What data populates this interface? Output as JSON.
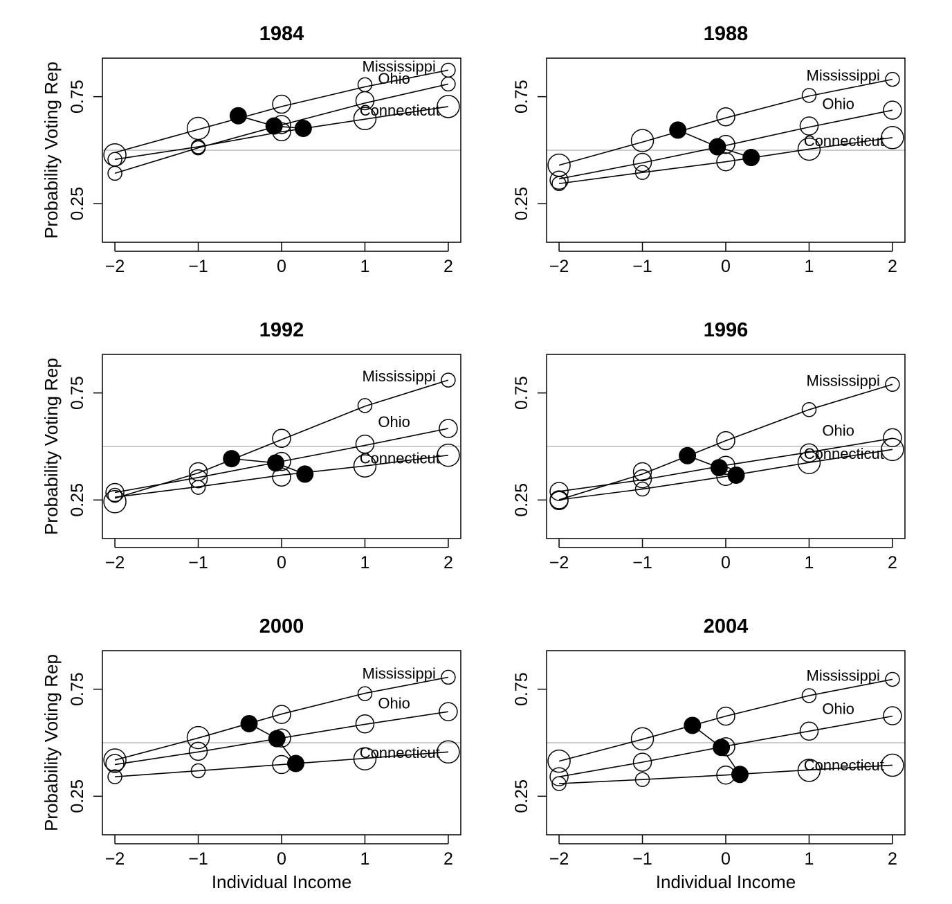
{
  "chart_data": {
    "type": "line",
    "layout": "3x2 small multiples",
    "xlabel": "Individual Income",
    "ylabel": "Probability Voting Rep",
    "xlim": [
      -2.15,
      2.15
    ],
    "ylim": [
      0.07,
      0.93
    ],
    "xticks": [
      -2,
      -1,
      0,
      1,
      2
    ],
    "xtick_labels": [
      "−2",
      "−1",
      "0",
      "1",
      "2"
    ],
    "yticks": [
      0.25,
      0.75
    ],
    "ytick_labels": [
      "0.25",
      "0.75"
    ],
    "reference_line": {
      "y": 0.5,
      "color": "#bbbbbb"
    },
    "x": [
      -2,
      -1,
      0,
      1,
      2
    ],
    "point_style": "open circles sized by relative sample size (1 small - 3 large); filled circles = state averages connected by a line",
    "panels": [
      {
        "title": "1984",
        "series": [
          {
            "name": "Mississippi",
            "fit": [
              0.489,
              0.597,
              0.704,
              0.796,
              0.874
            ],
            "points": [
              0.478,
              0.602,
              0.715,
              0.806,
              0.874
            ],
            "sizes": [
              3,
              3,
              2,
              1,
              1
            ],
            "average": {
              "x": -0.52,
              "y": 0.661
            }
          },
          {
            "name": "Ohio",
            "fit": [
              0.392,
              0.511,
              0.618,
              0.72,
              0.809
            ],
            "points": [
              0.392,
              0.511,
              0.586,
              0.731,
              0.809
            ],
            "sizes": [
              1,
              1,
              2,
              2,
              1
            ],
            "average": {
              "x": -0.09,
              "y": 0.613
            }
          },
          {
            "name": "Connecticut",
            "fit": [
              0.457,
              0.516,
              0.586,
              0.645,
              0.704
            ],
            "points": [
              0.457,
              0.516,
              0.62,
              0.648,
              0.704
            ],
            "sizes": [
              1,
              1,
              2,
              3,
              3
            ],
            "average": {
              "x": 0.26,
              "y": 0.602
            }
          }
        ]
      },
      {
        "title": "1988",
        "series": [
          {
            "name": "Mississippi",
            "fit": [
              0.43,
              0.538,
              0.651,
              0.753,
              0.831
            ],
            "points": [
              0.43,
              0.545,
              0.656,
              0.756,
              0.831
            ],
            "sizes": [
              3,
              3,
              2,
              1,
              1
            ],
            "average": {
              "x": -0.575,
              "y": 0.594
            }
          },
          {
            "name": "Ohio",
            "fit": [
              0.366,
              0.441,
              0.522,
              0.608,
              0.687
            ],
            "points": [
              0.36,
              0.443,
              0.527,
              0.613,
              0.687
            ],
            "sizes": [
              2,
              2,
              2,
              2,
              2
            ],
            "average": {
              "x": -0.1,
              "y": 0.516
            }
          },
          {
            "name": "Connecticut",
            "fit": [
              0.344,
              0.396,
              0.446,
              0.505,
              0.559
            ],
            "points": [
              0.344,
              0.396,
              0.446,
              0.505,
              0.559
            ],
            "sizes": [
              1,
              1,
              2,
              3,
              3
            ],
            "average": {
              "x": 0.305,
              "y": 0.466
            }
          }
        ]
      },
      {
        "title": "1992",
        "series": [
          {
            "name": "Mississippi",
            "fit": [
              0.258,
              0.376,
              0.532,
              0.688,
              0.81
            ],
            "points": [
              0.242,
              0.382,
              0.538,
              0.691,
              0.81
            ],
            "sizes": [
              3,
              2,
              2,
              1,
              1
            ],
            "average": {
              "x": -0.6,
              "y": 0.443
            }
          },
          {
            "name": "Ohio",
            "fit": [
              0.285,
              0.355,
              0.43,
              0.505,
              0.584
            ],
            "points": [
              0.285,
              0.349,
              0.43,
              0.511,
              0.584
            ],
            "sizes": [
              2,
              2,
              2,
              2,
              2
            ],
            "average": {
              "x": -0.07,
              "y": 0.423
            }
          },
          {
            "name": "Connecticut",
            "fit": [
              0.263,
              0.312,
              0.366,
              0.409,
              0.459
            ],
            "points": [
              0.272,
              0.309,
              0.357,
              0.409,
              0.459
            ],
            "sizes": [
              1,
              1,
              2,
              3,
              3
            ],
            "average": {
              "x": 0.28,
              "y": 0.371
            }
          }
        ]
      },
      {
        "title": "1996",
        "series": [
          {
            "name": "Mississippi",
            "fit": [
              0.251,
              0.371,
              0.527,
              0.672,
              0.79
            ],
            "points": [
              0.251,
              0.382,
              0.527,
              0.672,
              0.79
            ],
            "sizes": [
              2,
              2,
              2,
              1,
              1
            ],
            "average": {
              "x": -0.46,
              "y": 0.457
            }
          },
          {
            "name": "Ohio",
            "fit": [
              0.29,
              0.344,
              0.412,
              0.473,
              0.538
            ],
            "points": [
              0.29,
              0.349,
              0.412,
              0.47,
              0.541
            ],
            "sizes": [
              2,
              2,
              2,
              2,
              2
            ],
            "average": {
              "x": -0.08,
              "y": 0.401
            }
          },
          {
            "name": "Connecticut",
            "fit": [
              0.251,
              0.301,
              0.36,
              0.425,
              0.486
            ],
            "points": [
              0.247,
              0.301,
              0.36,
              0.425,
              0.486
            ],
            "sizes": [
              2,
              1,
              2,
              3,
              3
            ],
            "average": {
              "x": 0.125,
              "y": 0.366
            }
          }
        ]
      },
      {
        "title": "2000",
        "series": [
          {
            "name": "Mississippi",
            "fit": [
              0.419,
              0.522,
              0.634,
              0.731,
              0.806
            ],
            "points": [
              0.419,
              0.524,
              0.632,
              0.729,
              0.806
            ],
            "sizes": [
              3,
              3,
              2,
              1,
              1
            ],
            "average": {
              "x": -0.39,
              "y": 0.589
            }
          },
          {
            "name": "Ohio",
            "fit": [
              0.398,
              0.457,
              0.522,
              0.586,
              0.645
            ],
            "points": [
              0.403,
              0.46,
              0.522,
              0.588,
              0.645
            ],
            "sizes": [
              2,
              2,
              2,
              2,
              2
            ],
            "average": {
              "x": -0.056,
              "y": 0.519
            }
          },
          {
            "name": "Connecticut",
            "fit": [
              0.341,
              0.369,
              0.398,
              0.427,
              0.457
            ],
            "points": [
              0.341,
              0.369,
              0.398,
              0.425,
              0.457
            ],
            "sizes": [
              1,
              1,
              2,
              3,
              3
            ],
            "average": {
              "x": 0.17,
              "y": 0.403
            }
          }
        ]
      },
      {
        "title": "2004",
        "series": [
          {
            "name": "Mississippi",
            "fit": [
              0.414,
              0.516,
              0.624,
              0.72,
              0.796
            ],
            "points": [
              0.414,
              0.518,
              0.624,
              0.72,
              0.796
            ],
            "sizes": [
              3,
              3,
              2,
              1,
              1
            ],
            "average": {
              "x": -0.4,
              "y": 0.581
            }
          },
          {
            "name": "Ohio",
            "fit": [
              0.341,
              0.409,
              0.484,
              0.554,
              0.624
            ],
            "points": [
              0.341,
              0.409,
              0.481,
              0.554,
              0.626
            ],
            "sizes": [
              2,
              2,
              2,
              2,
              2
            ],
            "average": {
              "x": -0.053,
              "y": 0.478
            }
          },
          {
            "name": "Connecticut",
            "fit": [
              0.309,
              0.328,
              0.349,
              0.373,
              0.395
            ],
            "points": [
              0.309,
              0.328,
              0.349,
              0.371,
              0.395
            ],
            "sizes": [
              1,
              1,
              2,
              3,
              3
            ],
            "average": {
              "x": 0.17,
              "y": 0.352
            }
          }
        ]
      }
    ]
  }
}
